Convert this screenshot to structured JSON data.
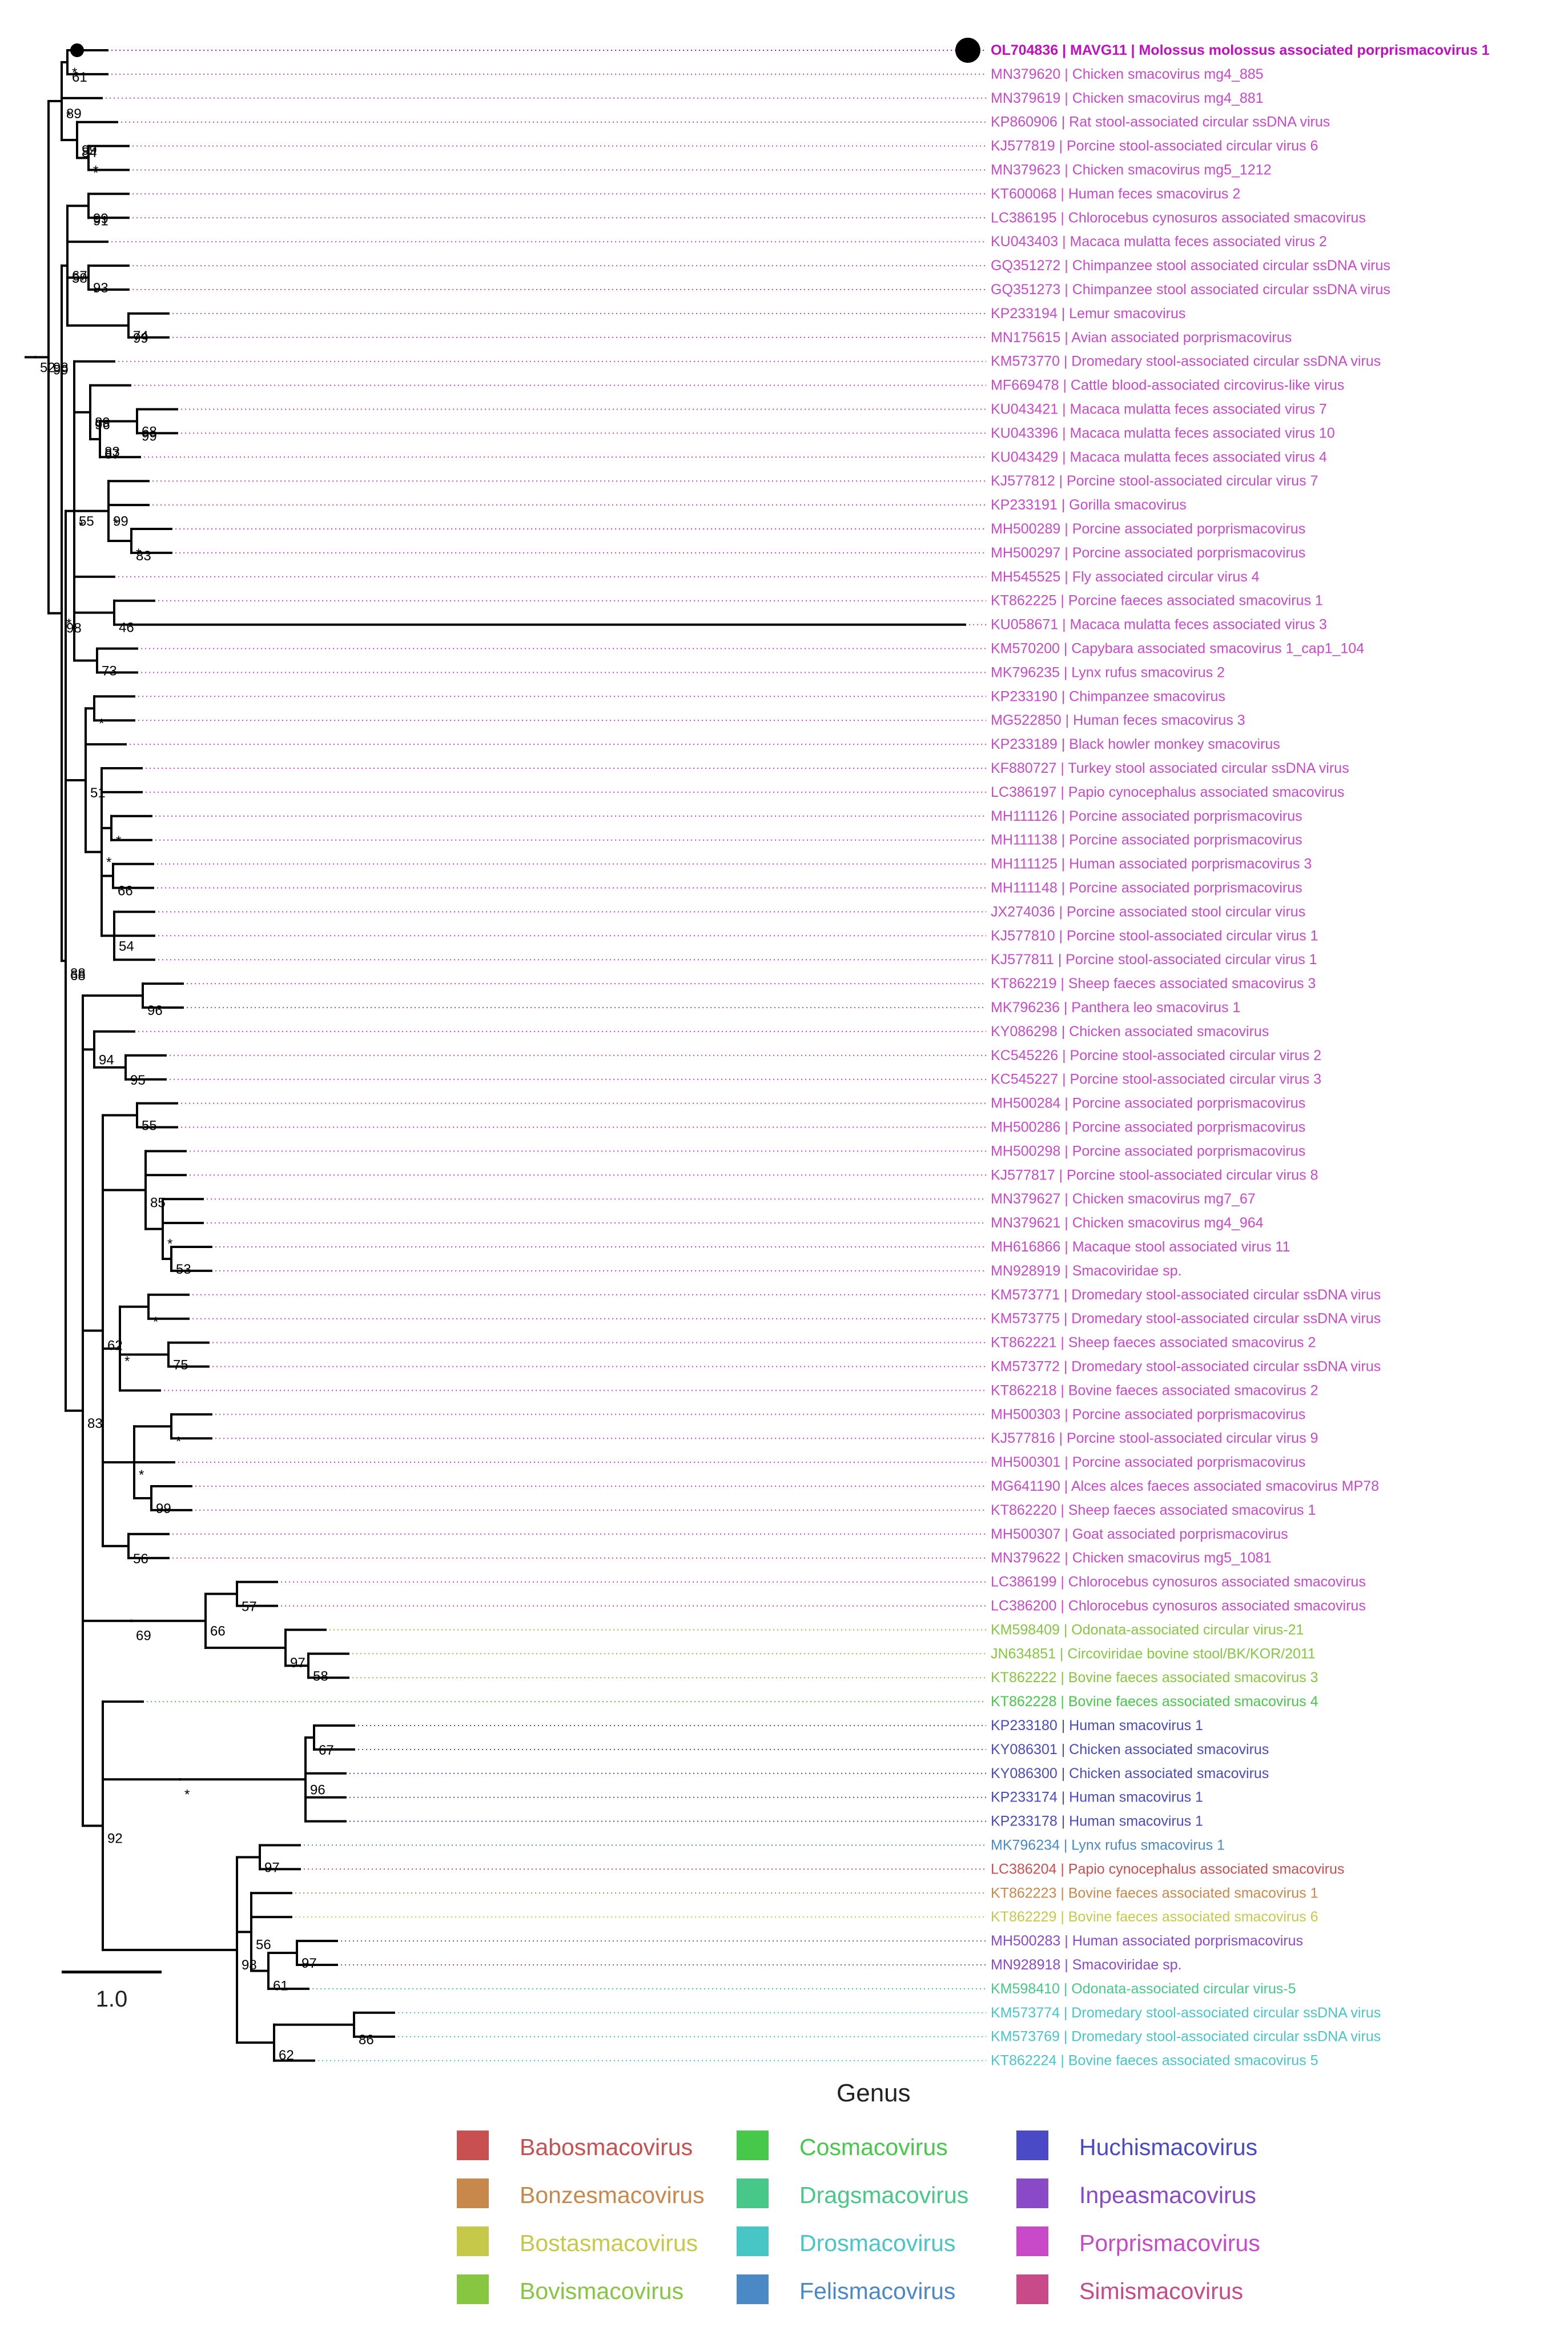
{
  "colors": {
    "Babosmacovirus": "#c85050",
    "Bonzesmacovirus": "#c8884c",
    "Bostasmacovirus": "#c6c84a",
    "Bovismacovirus": "#86c640",
    "Cosmacovirus": "#48c84a",
    "Dragsmacovirus": "#48c888",
    "Drosmacovirus": "#48c6c6",
    "Felismacovirus": "#4a88c6",
    "Huchismacovirus": "#4a4ac6",
    "Inpeasmacovirus": "#8a4ac8",
    "Porprismacovirus": "#c84ac8",
    "Simismacovirus": "#c84a88",
    "highlight": "#c010c0"
  },
  "leaves": [
    {
      "label": "OL704836 | MAVG11 | Molossus molossus associated porprismacovirus 1",
      "genus": "Porprismacovirus",
      "highlight": true
    },
    {
      "label": "MN379620 | Chicken smacovirus mg4_885",
      "genus": "Porprismacovirus"
    },
    {
      "label": "MN379619 | Chicken smacovirus mg4_881",
      "genus": "Porprismacovirus"
    },
    {
      "label": "KP860906 | Rat stool-associated circular ssDNA virus",
      "genus": "Porprismacovirus"
    },
    {
      "label": "KJ577819 | Porcine stool-associated circular virus 6",
      "genus": "Porprismacovirus"
    },
    {
      "label": "MN379623 | Chicken smacovirus mg5_1212",
      "genus": "Porprismacovirus"
    },
    {
      "label": "KT600068 | Human feces smacovirus 2",
      "genus": "Porprismacovirus"
    },
    {
      "label": "LC386195 | Chlorocebus cynosuros associated smacovirus",
      "genus": "Porprismacovirus"
    },
    {
      "label": "KU043403 | Macaca mulatta feces associated virus 2",
      "genus": "Porprismacovirus"
    },
    {
      "label": "GQ351272 | Chimpanzee stool associated circular ssDNA virus",
      "genus": "Porprismacovirus"
    },
    {
      "label": "GQ351273 | Chimpanzee stool associated circular ssDNA virus",
      "genus": "Porprismacovirus"
    },
    {
      "label": "KP233194 | Lemur smacovirus",
      "genus": "Porprismacovirus"
    },
    {
      "label": "MN175615 | Avian associated porprismacovirus",
      "genus": "Porprismacovirus"
    },
    {
      "label": "KM573770 | Dromedary stool-associated circular ssDNA virus",
      "genus": "Porprismacovirus"
    },
    {
      "label": "MF669478 | Cattle blood-associated circovirus-like virus",
      "genus": "Porprismacovirus"
    },
    {
      "label": "KU043421 | Macaca mulatta feces associated virus 7",
      "genus": "Porprismacovirus"
    },
    {
      "label": "KU043396 | Macaca mulatta feces associated virus 10",
      "genus": "Porprismacovirus"
    },
    {
      "label": "KU043429 | Macaca mulatta feces associated virus 4",
      "genus": "Porprismacovirus"
    },
    {
      "label": "KJ577812 | Porcine stool-associated circular virus 7",
      "genus": "Porprismacovirus"
    },
    {
      "label": "KP233191 | Gorilla smacovirus",
      "genus": "Porprismacovirus"
    },
    {
      "label": "MH500289 | Porcine associated porprismacovirus",
      "genus": "Porprismacovirus"
    },
    {
      "label": "MH500297 | Porcine associated porprismacovirus",
      "genus": "Porprismacovirus"
    },
    {
      "label": "MH545525 | Fly associated circular virus 4",
      "genus": "Porprismacovirus"
    },
    {
      "label": "KT862225 | Porcine faeces associated smacovirus 1",
      "genus": "Porprismacovirus"
    },
    {
      "label": "KU058671 | Macaca mulatta feces associated virus 3",
      "genus": "Porprismacovirus"
    },
    {
      "label": "KM570200 | Capybara associated smacovirus 1_cap1_104",
      "genus": "Porprismacovirus"
    },
    {
      "label": "MK796235 | Lynx rufus smacovirus 2",
      "genus": "Porprismacovirus"
    },
    {
      "label": "KP233190 | Chimpanzee smacovirus",
      "genus": "Porprismacovirus"
    },
    {
      "label": "MG522850 | Human feces smacovirus 3",
      "genus": "Porprismacovirus"
    },
    {
      "label": "KP233189 | Black howler monkey smacovirus",
      "genus": "Porprismacovirus"
    },
    {
      "label": "KF880727 | Turkey stool associated circular ssDNA virus",
      "genus": "Porprismacovirus"
    },
    {
      "label": "LC386197 | Papio cynocephalus associated smacovirus",
      "genus": "Porprismacovirus"
    },
    {
      "label": "MH111126 | Porcine associated porprismacovirus",
      "genus": "Porprismacovirus"
    },
    {
      "label": "MH111138 | Porcine associated porprismacovirus",
      "genus": "Porprismacovirus"
    },
    {
      "label": "MH111125 | Human associated porprismacovirus 3",
      "genus": "Porprismacovirus"
    },
    {
      "label": "MH111148 | Porcine associated porprismacovirus",
      "genus": "Porprismacovirus"
    },
    {
      "label": "JX274036 | Porcine associated stool circular virus",
      "genus": "Porprismacovirus"
    },
    {
      "label": "KJ577810 | Porcine stool-associated circular virus 1",
      "genus": "Porprismacovirus"
    },
    {
      "label": "KJ577811 | Porcine stool-associated circular virus 1",
      "genus": "Porprismacovirus"
    },
    {
      "label": "KT862219 | Sheep faeces associated smacovirus 3",
      "genus": "Porprismacovirus"
    },
    {
      "label": "MK796236 | Panthera leo smacovirus 1",
      "genus": "Porprismacovirus"
    },
    {
      "label": "KY086298 | Chicken associated smacovirus",
      "genus": "Porprismacovirus"
    },
    {
      "label": "KC545226 | Porcine stool-associated circular virus 2",
      "genus": "Porprismacovirus"
    },
    {
      "label": "KC545227 | Porcine stool-associated circular virus 3",
      "genus": "Porprismacovirus"
    },
    {
      "label": "MH500284 | Porcine associated porprismacovirus",
      "genus": "Porprismacovirus"
    },
    {
      "label": "MH500286 | Porcine associated porprismacovirus",
      "genus": "Porprismacovirus"
    },
    {
      "label": "MH500298 | Porcine associated porprismacovirus",
      "genus": "Porprismacovirus"
    },
    {
      "label": "KJ577817 | Porcine stool-associated circular virus 8",
      "genus": "Porprismacovirus"
    },
    {
      "label": "MN379627 | Chicken smacovirus mg7_67",
      "genus": "Porprismacovirus"
    },
    {
      "label": "MN379621 | Chicken smacovirus mg4_964",
      "genus": "Porprismacovirus"
    },
    {
      "label": "MH616866 | Macaque stool associated virus 11",
      "genus": "Porprismacovirus"
    },
    {
      "label": "MN928919 | Smacoviridae sp.",
      "genus": "Porprismacovirus"
    },
    {
      "label": "KM573771 | Dromedary stool-associated circular ssDNA virus",
      "genus": "Porprismacovirus"
    },
    {
      "label": "KM573775 | Dromedary stool-associated circular ssDNA virus",
      "genus": "Porprismacovirus"
    },
    {
      "label": "KT862221 | Sheep faeces associated smacovirus 2",
      "genus": "Porprismacovirus"
    },
    {
      "label": "KM573772 | Dromedary stool-associated circular ssDNA virus",
      "genus": "Porprismacovirus"
    },
    {
      "label": "KT862218 | Bovine faeces associated smacovirus 2",
      "genus": "Porprismacovirus"
    },
    {
      "label": "MH500303 | Porcine associated porprismacovirus",
      "genus": "Porprismacovirus"
    },
    {
      "label": "KJ577816 | Porcine stool-associated circular virus 9",
      "genus": "Porprismacovirus"
    },
    {
      "label": "MH500301 | Porcine associated porprismacovirus",
      "genus": "Porprismacovirus"
    },
    {
      "label": "MG641190 | Alces alces faeces associated smacovirus MP78",
      "genus": "Porprismacovirus"
    },
    {
      "label": "KT862220 | Sheep faeces associated smacovirus 1",
      "genus": "Porprismacovirus"
    },
    {
      "label": "MH500307 | Goat associated porprismacovirus",
      "genus": "Porprismacovirus"
    },
    {
      "label": "MN379622 | Chicken smacovirus mg5_1081",
      "genus": "Porprismacovirus"
    },
    {
      "label": "LC386199 | Chlorocebus cynosuros associated smacovirus",
      "genus": "Porprismacovirus"
    },
    {
      "label": "LC386200 | Chlorocebus cynosuros associated smacovirus",
      "genus": "Porprismacovirus"
    },
    {
      "label": "KM598409 | Odonata-associated circular virus-21",
      "genus": "Bovismacovirus"
    },
    {
      "label": "JN634851 | Circoviridae bovine stool/BK/KOR/2011",
      "genus": "Bovismacovirus"
    },
    {
      "label": "KT862222 | Bovine faeces associated smacovirus 3",
      "genus": "Bovismacovirus"
    },
    {
      "label": "KT862228 | Bovine faeces associated smacovirus 4",
      "genus": "Cosmacovirus"
    },
    {
      "label": "KP233180 | Human smacovirus 1",
      "genus": "Huchismacovirus"
    },
    {
      "label": "KY086301 | Chicken associated smacovirus",
      "genus": "Huchismacovirus"
    },
    {
      "label": "KY086300 | Chicken associated smacovirus",
      "genus": "Huchismacovirus"
    },
    {
      "label": "KP233174 | Human smacovirus 1",
      "genus": "Huchismacovirus"
    },
    {
      "label": "KP233178 | Human smacovirus 1",
      "genus": "Huchismacovirus"
    },
    {
      "label": "MK796234 | Lynx rufus smacovirus 1",
      "genus": "Felismacovirus"
    },
    {
      "label": "LC386204 | Papio cynocephalus associated smacovirus",
      "genus": "Babosmacovirus"
    },
    {
      "label": "KT862223 | Bovine faeces associated smacovirus 1",
      "genus": "Bonzesmacovirus"
    },
    {
      "label": "KT862229 | Bovine faeces associated smacovirus 6",
      "genus": "Bostasmacovirus"
    },
    {
      "label": "MH500283 | Human associated porprismacovirus",
      "genus": "Inpeasmacovirus"
    },
    {
      "label": "MN928918 | Smacoviridae sp.",
      "genus": "Inpeasmacovirus"
    },
    {
      "label": "KM598410 | Odonata-associated circular virus-5",
      "genus": "Dragsmacovirus"
    },
    {
      "label": "KM573774 | Dromedary stool-associated circular ssDNA virus",
      "genus": "Drosmacovirus"
    },
    {
      "label": "KM573769 | Dromedary stool-associated circular ssDNA virus",
      "genus": "Drosmacovirus"
    },
    {
      "label": "KT862224 | Bovine faeces associated smacovirus 5",
      "genus": "Drosmacovirus"
    }
  ],
  "support_values": [
    "98",
    "89",
    "61",
    "99",
    "*",
    "98",
    "67",
    "99",
    "*",
    "74",
    "88",
    "*",
    "89",
    "83",
    "99",
    "99",
    "*",
    "46",
    "73",
    "51",
    "*",
    "*",
    "*",
    "66",
    "54",
    "83",
    "96",
    "94",
    "95",
    "62",
    "55",
    "85",
    "*",
    "53",
    "*",
    "*",
    "75",
    "*",
    "*",
    "99",
    "56",
    "69",
    "66",
    "57",
    "97",
    "58",
    "92",
    "*",
    "96",
    "67",
    "98",
    "97",
    "56",
    "61",
    "97",
    "62",
    "86",
    "52",
    "99",
    "*",
    "*",
    "84",
    "*",
    "*",
    "58",
    "91",
    "93",
    "99",
    "68",
    "55",
    "96",
    "87",
    "68",
    "*",
    "83"
  ],
  "scale_bar": {
    "label": "1.0"
  },
  "legend": {
    "title": "Genus",
    "items": [
      {
        "name": "Babosmacovirus"
      },
      {
        "name": "Cosmacovirus"
      },
      {
        "name": "Huchismacovirus"
      },
      {
        "name": "Bonzesmacovirus"
      },
      {
        "name": "Dragsmacovirus"
      },
      {
        "name": "Inpeasmacovirus"
      },
      {
        "name": "Bostasmacovirus"
      },
      {
        "name": "Drosmacovirus"
      },
      {
        "name": "Porprismacovirus"
      },
      {
        "name": "Bovismacovirus"
      },
      {
        "name": "Felismacovirus"
      },
      {
        "name": "Simismacovirus"
      }
    ]
  }
}
